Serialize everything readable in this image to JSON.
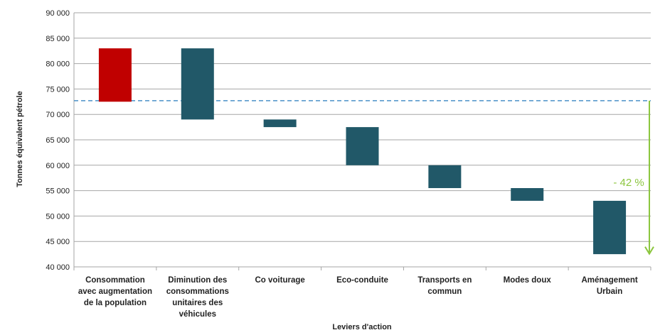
{
  "chart_data": {
    "type": "bar",
    "subtype": "waterfall",
    "ylabel": "Tonnes équivalent pétrole",
    "xlabel": "Leviers d'action",
    "ylim": [
      40000,
      90000
    ],
    "yticks": [
      40000,
      45000,
      50000,
      55000,
      60000,
      65000,
      70000,
      75000,
      80000,
      85000,
      90000
    ],
    "ytick_labels": [
      "40 000",
      "45 000",
      "50 000",
      "55 000",
      "60 000",
      "65 000",
      "70 000",
      "75 000",
      "80 000",
      "85 000",
      "90 000"
    ],
    "categories": [
      [
        "Consommation",
        "avec augmentation",
        "de la population"
      ],
      [
        "Diminution des",
        "consommations",
        "unitaires des",
        "véhicules"
      ],
      [
        "Co voiturage"
      ],
      [
        "Eco-conduite"
      ],
      [
        "Transports en",
        "commun"
      ],
      [
        "Modes doux"
      ],
      [
        "Aménagement",
        "Urbain"
      ]
    ],
    "bars": [
      {
        "low": 72500,
        "high": 83000,
        "color": "#c00000"
      },
      {
        "low": 69000,
        "high": 83000,
        "color": "#215868"
      },
      {
        "low": 67500,
        "high": 69000,
        "color": "#215868"
      },
      {
        "low": 60000,
        "high": 67500,
        "color": "#215868"
      },
      {
        "low": 55500,
        "high": 60000,
        "color": "#215868"
      },
      {
        "low": 53000,
        "high": 55500,
        "color": "#215868"
      },
      {
        "low": 42500,
        "high": 53000,
        "color": "#215868"
      }
    ],
    "reference_line": {
      "value": 72700,
      "color": "#4a90c8",
      "style": "dashed"
    },
    "arrow": {
      "from": 72700,
      "to": 42000,
      "color": "#8cc63f"
    },
    "annotation": {
      "text": "- 42 %",
      "color": "#8cc63f"
    },
    "grid": true,
    "gridline_color": "#a6a6a6"
  }
}
